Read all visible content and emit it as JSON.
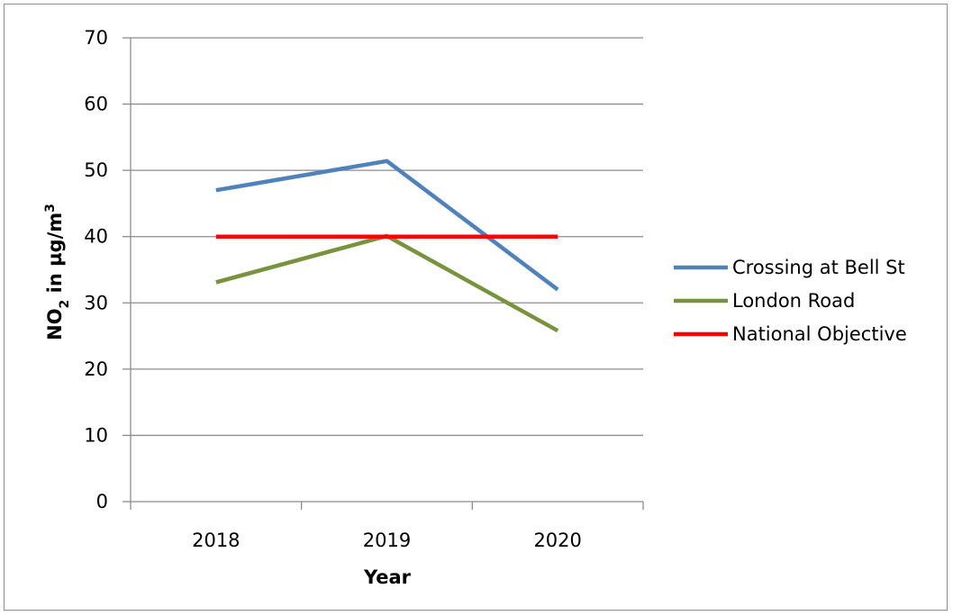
{
  "chart_data": {
    "type": "line",
    "categories": [
      "2018",
      "2019",
      "2020"
    ],
    "series": [
      {
        "name": "Crossing at Bell St",
        "values": [
          47,
          51.4,
          32
        ],
        "color": "#4f81bd"
      },
      {
        "name": "London Road",
        "values": [
          33.1,
          40.1,
          25.8
        ],
        "color": "#77933c"
      },
      {
        "name": "National Objective",
        "values": [
          40,
          40,
          40
        ],
        "color": "#ff0000"
      }
    ],
    "xlabel": "Year",
    "ylabel": {
      "prefix": "NO",
      "sub": "2",
      "middle": " in µg/m",
      "sup": "3"
    },
    "ylim": [
      0,
      70
    ],
    "yticks": [
      0,
      10,
      20,
      30,
      40,
      50,
      60,
      70
    ],
    "grid": true,
    "legend_position": "right"
  }
}
